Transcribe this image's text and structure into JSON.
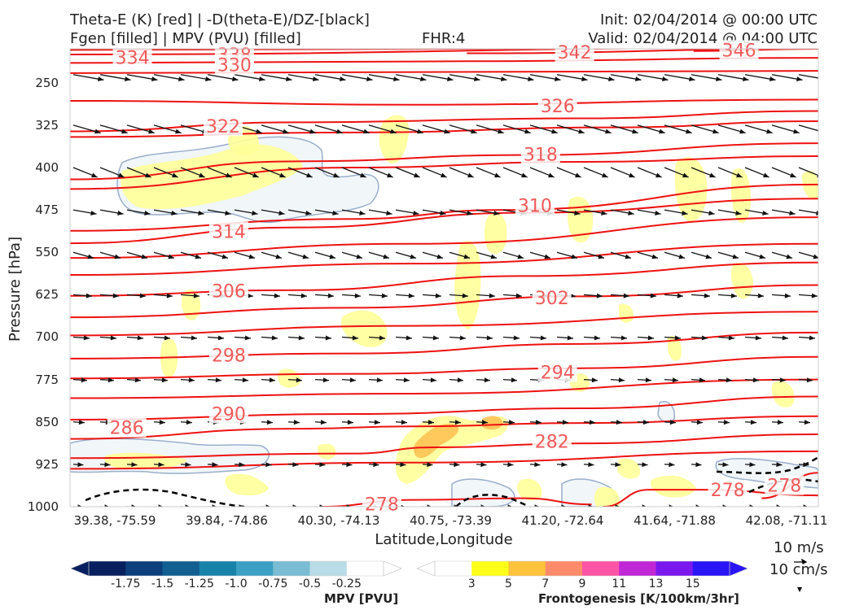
{
  "header": {
    "line1_left": "Theta-E (K) [red] | -D(theta-E)/DZ-[black]",
    "line2_left": "Fgen [filled] | MPV (PVU) [filled]",
    "fhr": "FHR:4",
    "init": "Init: 02/04/2014 @ 00:00 UTC",
    "valid": "Valid: 02/04/2014 @ 04:00 UTC"
  },
  "colors": {
    "theta_e": "#ee1111",
    "arrows": "#111111",
    "fgen_low": "#ffff99",
    "fgen_mid": "#ffd070",
    "mpv_fill": "#f1f6f9",
    "mpv_edge": "#9aaecb"
  },
  "chart_data": {
    "type": "cross-section",
    "ylabel": "Pressure [hPa]",
    "xlabel": "Latitude,Longitude",
    "y_ticks": [
      "250",
      "325",
      "400",
      "475",
      "550",
      "625",
      "700",
      "775",
      "850",
      "925",
      "1000"
    ],
    "y_tick_values": [
      250,
      325,
      400,
      475,
      550,
      625,
      700,
      775,
      850,
      925,
      1000
    ],
    "ylim": [
      1000,
      190
    ],
    "x_ticks": [
      "39.38, -75.59",
      "39.84, -74.86",
      "40.30, -74.13",
      "40.75, -73.39",
      "41.20, -72.64",
      "41.64, -71.88",
      "42.08, -71.11"
    ],
    "xlim": [
      0,
      6.6
    ],
    "theta_e_contours": [
      {
        "label": "334",
        "x": 0.55,
        "p": 205,
        "points": [
          [
            0,
            200
          ],
          [
            6.6,
            188
          ]
        ]
      },
      {
        "label": "338",
        "x": 1.45,
        "p": 200,
        "points": [
          [
            0,
            192
          ],
          [
            6.6,
            188
          ]
        ]
      },
      {
        "label": "330",
        "x": 1.45,
        "p": 218,
        "points": [
          [
            0,
            215
          ],
          [
            3.5,
            212
          ],
          [
            6.6,
            206
          ]
        ]
      },
      {
        "label": "342",
        "x": 4.45,
        "p": 196,
        "points": [
          [
            3.5,
            198
          ],
          [
            6.6,
            190
          ]
        ]
      },
      {
        "label": "346",
        "x": 5.9,
        "p": 192,
        "points": [
          [
            5.5,
            194
          ],
          [
            6.6,
            190
          ]
        ]
      },
      {
        "label": "",
        "x": null,
        "p": null,
        "points": [
          [
            0,
            233
          ],
          [
            6.6,
            229
          ]
        ]
      },
      {
        "label": "326",
        "x": 4.3,
        "p": 291,
        "points": [
          [
            0,
            282
          ],
          [
            3.0,
            289
          ],
          [
            6.6,
            280
          ]
        ]
      },
      {
        "label": "322",
        "x": 1.35,
        "p": 327,
        "points": [
          [
            0,
            336
          ],
          [
            2.0,
            320
          ],
          [
            4.5,
            313
          ],
          [
            6.6,
            300
          ]
        ]
      },
      {
        "label": "",
        "x": null,
        "p": null,
        "points": [
          [
            0,
            346
          ],
          [
            2.5,
            338
          ],
          [
            4.8,
            329
          ],
          [
            6.6,
            318
          ]
        ]
      },
      {
        "label": "318",
        "x": 4.15,
        "p": 376,
        "points": [
          [
            0,
            421
          ],
          [
            2.0,
            389
          ],
          [
            4.0,
            378
          ],
          [
            6.6,
            357
          ]
        ]
      },
      {
        "label": "",
        "x": null,
        "p": null,
        "points": [
          [
            0,
            438
          ],
          [
            2.5,
            400
          ],
          [
            4.5,
            390
          ],
          [
            6.6,
            380
          ]
        ]
      },
      {
        "label": "310",
        "x": 4.1,
        "p": 467,
        "points": [
          [
            0,
            512
          ],
          [
            2.5,
            491
          ],
          [
            3.8,
            475
          ],
          [
            6.6,
            430
          ]
        ]
      },
      {
        "label": "314",
        "x": 1.4,
        "p": 513,
        "points": [
          [
            0,
            534
          ],
          [
            2.0,
            506
          ],
          [
            4.0,
            480
          ],
          [
            6.6,
            455
          ]
        ]
      },
      {
        "label": "",
        "x": null,
        "p": null,
        "points": [
          [
            0,
            560
          ],
          [
            3.0,
            535
          ],
          [
            6.6,
            488
          ]
        ]
      },
      {
        "label": "",
        "x": null,
        "p": null,
        "points": [
          [
            0,
            590
          ],
          [
            3.0,
            570
          ],
          [
            6.6,
            535
          ]
        ]
      },
      {
        "label": "306",
        "x": 1.4,
        "p": 618,
        "points": [
          [
            0,
            627
          ],
          [
            2.0,
            617
          ],
          [
            4.0,
            592
          ],
          [
            6.6,
            568
          ]
        ]
      },
      {
        "label": "302",
        "x": 4.25,
        "p": 630,
        "points": [
          [
            0,
            665
          ],
          [
            2.5,
            648
          ],
          [
            4.5,
            628
          ],
          [
            6.6,
            608
          ]
        ]
      },
      {
        "label": "",
        "x": null,
        "p": null,
        "points": [
          [
            0,
            697
          ],
          [
            3.0,
            680
          ],
          [
            6.6,
            655
          ]
        ]
      },
      {
        "label": "298",
        "x": 1.4,
        "p": 732,
        "points": [
          [
            0,
            738
          ],
          [
            2.5,
            729
          ],
          [
            4.5,
            712
          ],
          [
            6.6,
            692
          ]
        ]
      },
      {
        "label": "294",
        "x": 4.3,
        "p": 762,
        "points": [
          [
            0,
            773
          ],
          [
            2.5,
            765
          ],
          [
            4.5,
            755
          ],
          [
            6.6,
            735
          ]
        ]
      },
      {
        "label": "",
        "x": null,
        "p": null,
        "points": [
          [
            0,
            808
          ],
          [
            3.0,
            800
          ],
          [
            6.6,
            775
          ]
        ]
      },
      {
        "label": "290",
        "x": 1.4,
        "p": 835,
        "points": [
          [
            0,
            846
          ],
          [
            2.5,
            836
          ],
          [
            4.5,
            826
          ],
          [
            6.6,
            805
          ]
        ]
      },
      {
        "label": "286",
        "x": 0.5,
        "p": 860,
        "points": [
          [
            0,
            880
          ],
          [
            2.0,
            862
          ],
          [
            3.0,
            858
          ],
          [
            4.5,
            852
          ],
          [
            6.6,
            840
          ]
        ]
      },
      {
        "label": "282",
        "x": 4.25,
        "p": 884,
        "points": [
          [
            0,
            914
          ],
          [
            2.5,
            906
          ],
          [
            3.2,
            895
          ],
          [
            4.5,
            888
          ],
          [
            6.6,
            872
          ]
        ]
      },
      {
        "label": "",
        "x": null,
        "p": null,
        "points": [
          [
            0,
            933
          ],
          [
            3.0,
            922
          ],
          [
            6.6,
            902
          ]
        ]
      },
      {
        "label": "278",
        "x": 2.75,
        "p": 995,
        "points": [
          [
            2.2,
            1000
          ],
          [
            3.0,
            988
          ],
          [
            4.0,
            985
          ],
          [
            4.6,
            996
          ]
        ]
      },
      {
        "label": "278",
        "x": 5.8,
        "p": 970,
        "points": [
          [
            4.7,
            1000
          ],
          [
            5.1,
            970
          ],
          [
            5.6,
            970
          ],
          [
            6.6,
            980
          ]
        ]
      },
      {
        "label": "278",
        "x": 6.3,
        "p": 962,
        "points": [
          [
            6.1,
            985
          ],
          [
            6.6,
            940
          ]
        ]
      }
    ],
    "mpv_colorbar": {
      "title": "MPV [PVU]",
      "ticks": [
        "-1.75",
        "-1.5",
        "-1.25",
        "-1.0",
        "-0.75",
        "-0.5",
        "-0.25"
      ],
      "colors": [
        "#08205f",
        "#0d3f7c",
        "#125f92",
        "#1883a9",
        "#3ca0c4",
        "#79bcd3",
        "#b9dce7",
        "#ffffff"
      ]
    },
    "fgen_colorbar": {
      "title": "Frontogenesis [K/100km/3hr]",
      "ticks": [
        "3",
        "5",
        "7",
        "9",
        "11",
        "13",
        "15"
      ],
      "colors": [
        "#ffffff",
        "#ffff1a",
        "#ffc23b",
        "#ff8b6b",
        "#ff55a6",
        "#c028d6",
        "#7a18ee",
        "#2a15f6"
      ]
    },
    "vector_key": {
      "horizontal": "10 m/s",
      "vertical": "10 cm/s"
    }
  }
}
